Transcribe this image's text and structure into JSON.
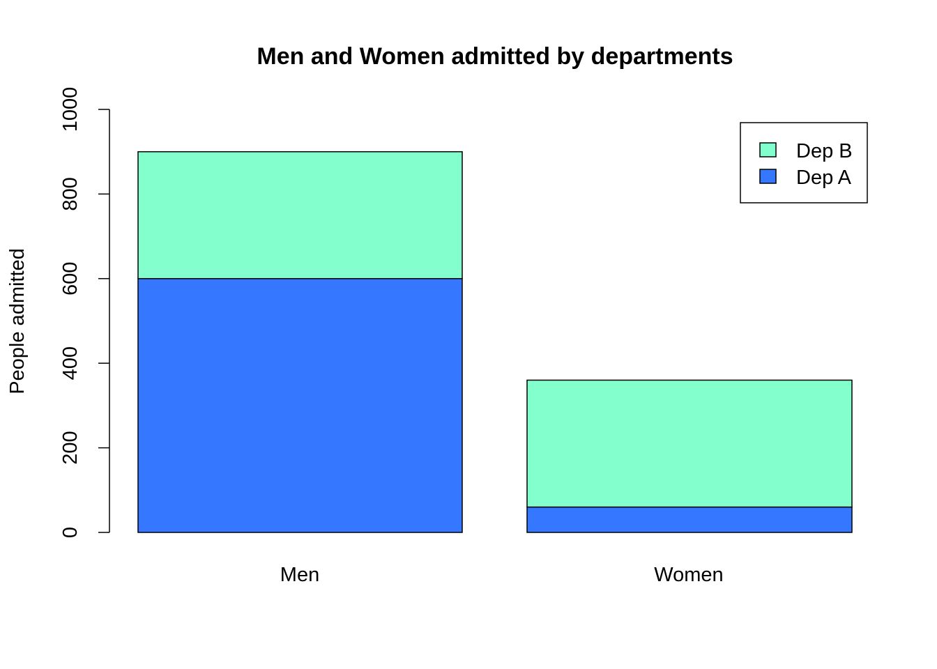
{
  "chart_data": {
    "type": "bar",
    "stacked": true,
    "title": "Men and Women admitted by departments",
    "xlabel": "",
    "ylabel": "People admitted",
    "categories": [
      "Men",
      "Women"
    ],
    "series": [
      {
        "name": "Dep A",
        "values": [
          600,
          60
        ],
        "color": "#3677FF"
      },
      {
        "name": "Dep B",
        "values": [
          300,
          300
        ],
        "color": "#82FFCC"
      }
    ],
    "ylim": [
      0,
      1000
    ],
    "yticks": [
      0,
      200,
      400,
      600,
      800,
      1000
    ],
    "legend": {
      "position": "top-right",
      "order": [
        "Dep B",
        "Dep A"
      ]
    },
    "grid": false
  }
}
